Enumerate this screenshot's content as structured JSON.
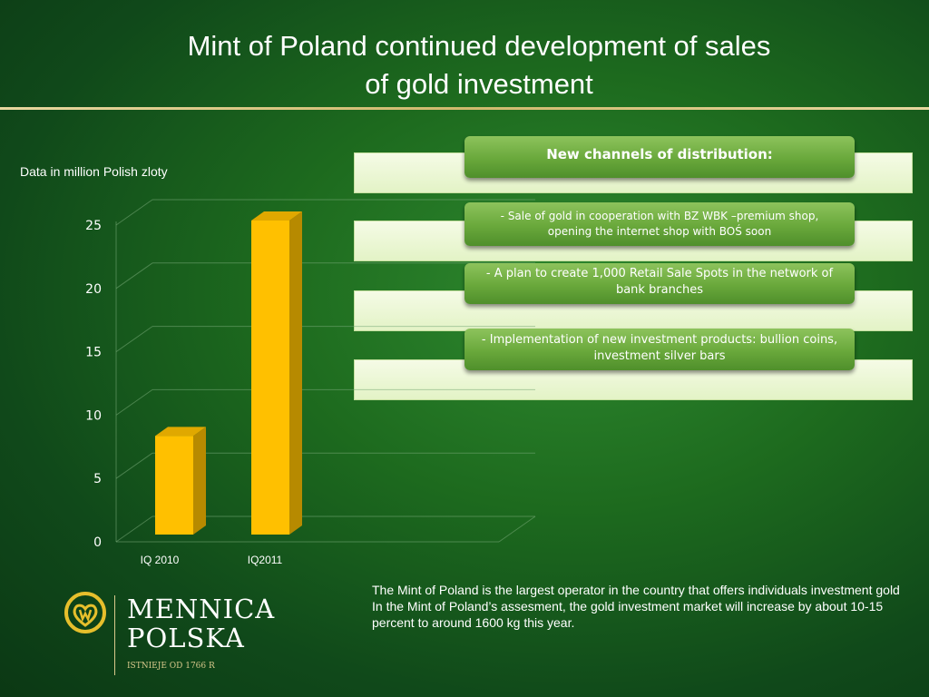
{
  "slide": {
    "title_line1": "Mint of Poland continued development of sales",
    "title_line2": "of gold investment",
    "data_note": "Data in million Polish zloty"
  },
  "channels": {
    "header": "New channels of distribution:",
    "items": [
      "- Sale of gold in cooperation with  BZ WBK –premium shop, opening the internet shop with BOŚ soon",
      "- A plan to create 1,000 Retail Sale Spots in the network of bank branches",
      "- Implementation of new investment products: bullion coins, investment silver bars"
    ]
  },
  "footer": {
    "text": "The Mint of Poland is the largest operator in the country that offers individuals investment gold  In the Mint of Poland’s assesment, the gold investment market will increase by about 10-15 percent to around 1600 kg this year."
  },
  "logo": {
    "line1": "MENNICA",
    "line2": "POLSKA",
    "established": "ISTNIEJE OD 1766 R"
  },
  "chart_data": {
    "type": "bar",
    "categories": [
      "IQ 2010",
      "IQ2011"
    ],
    "values": [
      8,
      25
    ],
    "ylim": [
      0,
      25
    ],
    "yticks": [
      0,
      5,
      10,
      15,
      20,
      25
    ],
    "grid": true,
    "style": "3d",
    "bar_color": "#ffc000"
  }
}
